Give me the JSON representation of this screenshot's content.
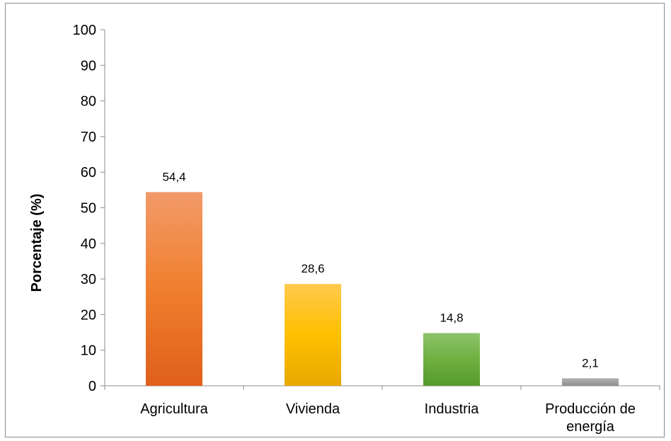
{
  "chart_data": {
    "type": "bar",
    "title": "",
    "xlabel": "",
    "ylabel": "Porcentaje (%)",
    "ylim": [
      0,
      100
    ],
    "yticks": [
      0,
      10,
      20,
      30,
      40,
      50,
      60,
      70,
      80,
      90,
      100
    ],
    "grid": false,
    "legend": "none",
    "categories": [
      "Agricultura",
      "Vivienda",
      "Industria",
      "Producción de energía"
    ],
    "category_lines": [
      [
        "Agricultura"
      ],
      [
        "Vivienda"
      ],
      [
        "Industria"
      ],
      [
        "Producción de",
        "energía"
      ]
    ],
    "values": [
      54.4,
      28.6,
      14.8,
      2.1
    ],
    "data_labels": [
      "54,4",
      "28,6",
      "14,8",
      "2,1"
    ],
    "colors": [
      {
        "top": "#f29a6a",
        "mid": "#f07f2e",
        "bottom": "#e0601c"
      },
      {
        "top": "#ffc94d",
        "mid": "#ffc000",
        "bottom": "#e8a800"
      },
      {
        "top": "#8cc36a",
        "mid": "#6fb040",
        "bottom": "#549a2c"
      },
      {
        "top": "#b0b0b0",
        "mid": "#a0a0a0",
        "bottom": "#8c8c8c"
      }
    ]
  }
}
